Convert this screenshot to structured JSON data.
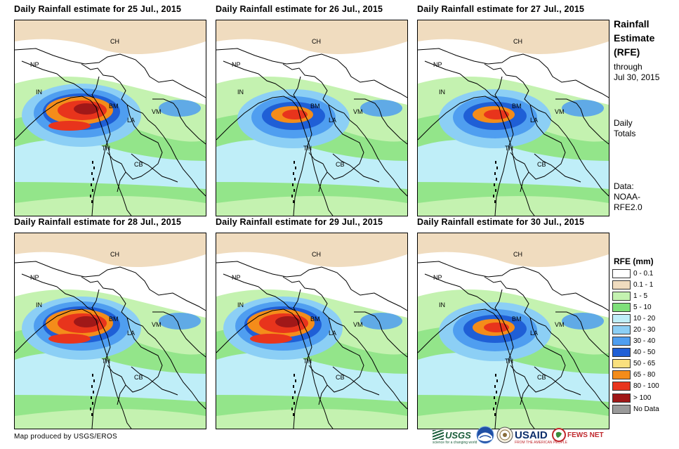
{
  "panels": [
    {
      "title": "Daily Rainfall estimate for 25 Jul., 2015",
      "heavy": "high"
    },
    {
      "title": "Daily Rainfall estimate for 26 Jul., 2015",
      "heavy": "medium"
    },
    {
      "title": "Daily Rainfall estimate for 27 Jul., 2015",
      "heavy": "medium"
    },
    {
      "title": "Daily Rainfall estimate for 28 Jul., 2015",
      "heavy": "high"
    },
    {
      "title": "Daily Rainfall estimate for 29 Jul., 2015",
      "heavy": "high"
    },
    {
      "title": "Daily Rainfall estimate for 30 Jul., 2015",
      "heavy": "medium"
    }
  ],
  "map_labels": [
    "CH",
    "NP",
    "IN",
    "BM",
    "VM",
    "LA",
    "TH",
    "CB"
  ],
  "sidebar": {
    "title_line1": "Rainfall",
    "title_line2": "Estimate",
    "title_line3": "(RFE)",
    "through_label": "through",
    "through_date": "Jul 30, 2015",
    "daily_line1": "Daily",
    "daily_line2": "Totals",
    "data_line1": "Data:",
    "data_line2": "NOAA-",
    "data_line3": "RFE2.0"
  },
  "legend": {
    "title": "RFE (mm)",
    "items": [
      {
        "label": "0 - 0.1",
        "color": "#ffffff"
      },
      {
        "label": "0.1 - 1",
        "color": "#f0dcbf"
      },
      {
        "label": "1 - 5",
        "color": "#c4f2b0"
      },
      {
        "label": "5 - 10",
        "color": "#7fe07a"
      },
      {
        "label": "10 - 20",
        "color": "#bfeef8"
      },
      {
        "label": "20 - 30",
        "color": "#8ccff5"
      },
      {
        "label": "30 - 40",
        "color": "#4f9ef0"
      },
      {
        "label": "40 - 50",
        "color": "#1f5fd6"
      },
      {
        "label": "50 - 65",
        "color": "#f9e07e"
      },
      {
        "label": "65 - 80",
        "color": "#f48c1a"
      },
      {
        "label": "80 - 100",
        "color": "#e8341c"
      },
      {
        "label": "> 100",
        "color": "#a01818"
      },
      {
        "label": "No Data",
        "color": "#9a9a9a"
      }
    ]
  },
  "footer": {
    "credit": "Map produced by USGS/EROS",
    "usgs": "USGS",
    "usgs_tagline": "science for a changing world",
    "usaid": "USAID",
    "usaid_tagline": "FROM THE AMERICAN PEOPLE",
    "fewsnet": "FEWS NET"
  }
}
